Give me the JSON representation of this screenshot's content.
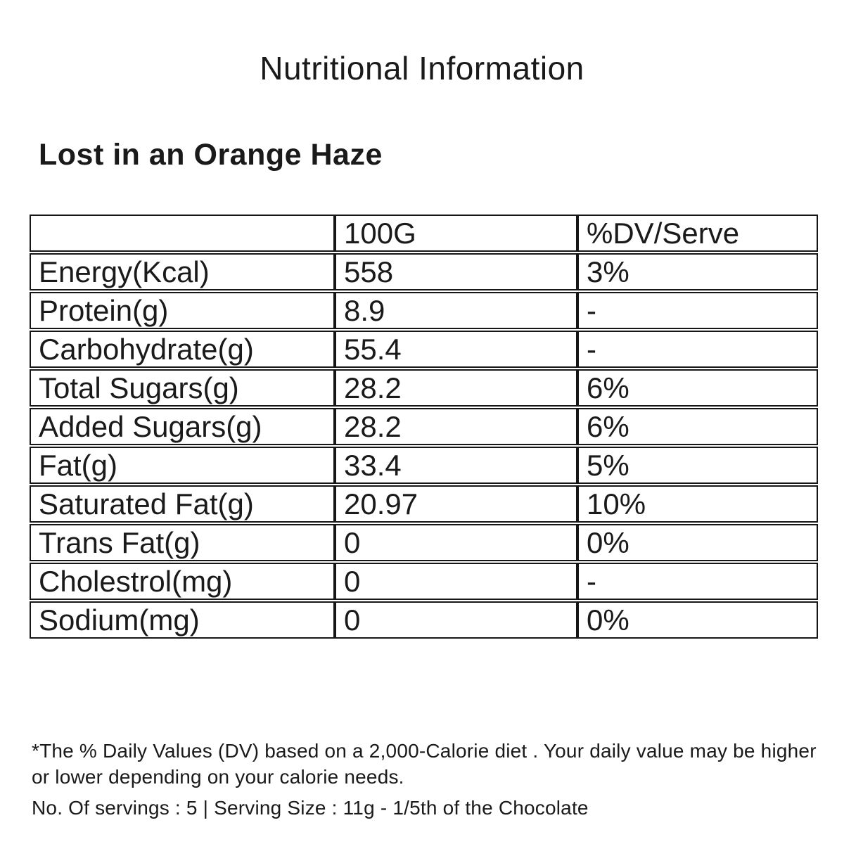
{
  "page": {
    "title": "Nutritional Information",
    "product_name": "Lost in an Orange Haze",
    "background_color": "#ffffff",
    "text_color": "#1a1a1a",
    "border_color": "#161616"
  },
  "table": {
    "columns": [
      "",
      "100G",
      "%DV/Serve"
    ],
    "rows": [
      {
        "nutrient": "Energy(Kcal)",
        "per_100g": "558",
        "dv_per_serve": "3%"
      },
      {
        "nutrient": "Protein(g)",
        "per_100g": "8.9",
        "dv_per_serve": "-"
      },
      {
        "nutrient": "Carbohydrate(g)",
        "per_100g": "55.4",
        "dv_per_serve": "-"
      },
      {
        "nutrient": "Total Sugars(g)",
        "per_100g": "28.2",
        "dv_per_serve": "6%"
      },
      {
        "nutrient": "Added Sugars(g)",
        "per_100g": "28.2",
        "dv_per_serve": "6%"
      },
      {
        "nutrient": "Fat(g)",
        "per_100g": "33.4",
        "dv_per_serve": "5%"
      },
      {
        "nutrient": "Saturated Fat(g)",
        "per_100g": "20.97",
        "dv_per_serve": "10%"
      },
      {
        "nutrient": "Trans Fat(g)",
        "per_100g": "0",
        "dv_per_serve": "0%"
      },
      {
        "nutrient": "Cholestrol(mg)",
        "per_100g": "0",
        "dv_per_serve": "-"
      },
      {
        "nutrient": "Sodium(mg)",
        "per_100g": "0",
        "dv_per_serve": "0%"
      }
    ]
  },
  "footnotes": {
    "daily_value_note": "*The % Daily Values (DV) based on a 2,000-Calorie diet . Your daily value may be higher or lower depending on your calorie needs.",
    "servings_note": "No. Of servings : 5 | Serving Size : 11g - 1/5th of the Chocolate"
  }
}
